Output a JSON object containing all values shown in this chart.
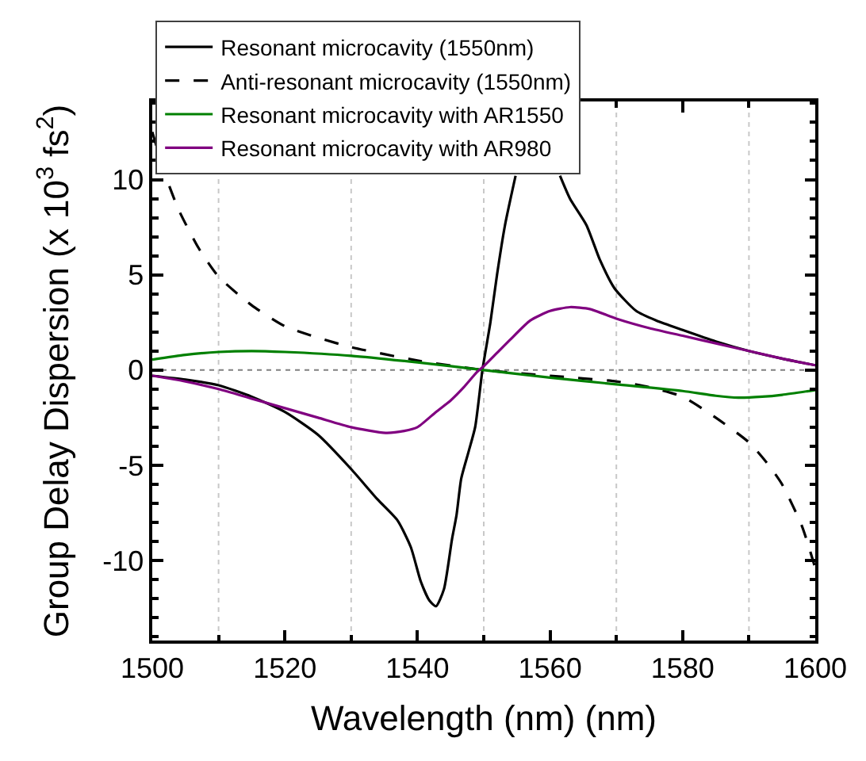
{
  "chart_data": {
    "type": "line",
    "xlabel": "Wavelength (nm) (nm)",
    "ylabel": "Group Delay Dispersion (x 10$^{3}$ fs$^{2}$)",
    "xlim": [
      1500,
      1600
    ],
    "xticks": [
      1500,
      1520,
      1540,
      1560,
      1580,
      1600
    ],
    "ylim": [
      -14.2,
      14.1
    ],
    "yticks": [
      -10,
      -5,
      0,
      5,
      10
    ],
    "legend": "top left",
    "grid": false,
    "ref_lines": [
      {
        "axis": "x",
        "value": 1510,
        "color": "#c8c8c8",
        "line_style": "dotted"
      },
      {
        "axis": "x",
        "value": 1530,
        "color": "#c8c8c8",
        "line_style": "dotted"
      },
      {
        "axis": "x",
        "value": 1550,
        "color": "#c8c8c8",
        "line_style": "dotted"
      },
      {
        "axis": "x",
        "value": 1570,
        "color": "#c8c8c8",
        "line_style": "dotted"
      },
      {
        "axis": "x",
        "value": 1590,
        "color": "#c8c8c8",
        "line_style": "dotted"
      },
      {
        "axis": "y",
        "value": 0,
        "color": "#808080",
        "line_style": "dotted"
      }
    ],
    "series": [
      {
        "name": "Resonant microcavity (1550nm)",
        "color": "#000000",
        "line_style": "solid",
        "x": [
          1500,
          1505,
          1510,
          1515,
          1520,
          1525,
          1530,
          1534,
          1537,
          1539,
          1540.5,
          1541.8,
          1542.8,
          1544,
          1545.2,
          1545.9,
          1546.6,
          1547.7,
          1548.7,
          1549.8,
          1551,
          1552,
          1553.2,
          1554.8,
          1558,
          1561.5,
          1563,
          1565.5,
          1567.5,
          1569.7,
          1573,
          1576,
          1580,
          1585,
          1590,
          1595,
          1600
        ],
        "values": [
          -0.3,
          -0.5,
          -0.8,
          -1.4,
          -2.2,
          -3.4,
          -5.2,
          -6.8,
          -7.9,
          -9.3,
          -11.1,
          -12.1,
          -12.4,
          -11.5,
          -8.9,
          -7.6,
          -5.7,
          -4.3,
          -3.0,
          0,
          2.5,
          5,
          7.6,
          10.2,
          null,
          10.2,
          9.0,
          7.6,
          5.8,
          4.3,
          3.1,
          2.6,
          2.1,
          1.5,
          1.0,
          0.6,
          0.25
        ]
      },
      {
        "name": "Anti-resonant microcavity (1550nm)",
        "color": "#000000",
        "line_style": "dashed",
        "x": [
          1500,
          1502,
          1504,
          1507,
          1510,
          1515,
          1520,
          1525,
          1530,
          1540,
          1550,
          1560,
          1570,
          1575,
          1580,
          1585,
          1590,
          1593,
          1595,
          1598,
          1600
        ],
        "values": [
          12.5,
          10.2,
          8.4,
          6.4,
          4.9,
          3.4,
          2.3,
          1.7,
          1.2,
          0.5,
          0,
          -0.3,
          -0.6,
          -0.9,
          -1.4,
          -2.5,
          -3.8,
          -5.0,
          -6.0,
          -8.2,
          -10.4
        ]
      },
      {
        "name": "Resonant microcavity with AR1550",
        "color": "#008000",
        "line_style": "solid",
        "x": [
          1500,
          1505,
          1510,
          1515,
          1520,
          1530,
          1540,
          1550,
          1560,
          1570,
          1580,
          1585,
          1588.4,
          1592,
          1595,
          1600
        ],
        "values": [
          0.55,
          0.8,
          0.95,
          1.0,
          0.95,
          0.75,
          0.4,
          0,
          -0.4,
          -0.75,
          -1.1,
          -1.35,
          -1.45,
          -1.4,
          -1.3,
          -1.05
        ]
      },
      {
        "name": "Resonant microcavity with AR980",
        "color": "#800080",
        "line_style": "solid",
        "x": [
          1500,
          1505,
          1510,
          1515,
          1520,
          1525,
          1530,
          1535.2,
          1538,
          1540,
          1542.8,
          1545,
          1547,
          1549,
          1550,
          1552,
          1554,
          1557,
          1560,
          1563,
          1566,
          1570,
          1575,
          1580,
          1585,
          1590,
          1595,
          1600
        ],
        "values": [
          -0.3,
          -0.6,
          -1.0,
          -1.5,
          -2.0,
          -2.5,
          -3.0,
          -3.3,
          -3.2,
          -3.0,
          -2.2,
          -1.6,
          -0.9,
          -0.1,
          0.2,
          0.9,
          1.6,
          2.6,
          3.1,
          3.3,
          3.2,
          2.7,
          2.2,
          1.8,
          1.4,
          1.0,
          0.6,
          0.25
        ]
      }
    ]
  }
}
